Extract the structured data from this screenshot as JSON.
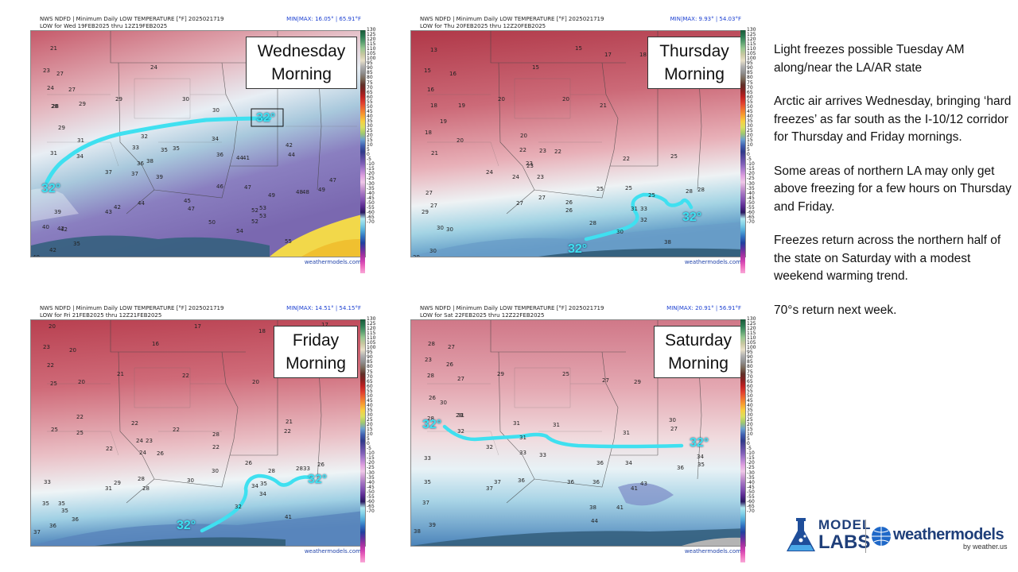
{
  "panels": [
    {
      "id": "wed",
      "header_line1": "NWS NDFD | Minimum Daily LOW TEMPERATURE [°F]  2025021719",
      "header_line2": "LOW for Wed 19FEB2025 thru 12Z19FEB2025",
      "minmax": "MIN|MAX: 16.05° | 65.91°F",
      "day_line1": "Wednesday",
      "day_line2": "Morning",
      "line_label": "32°",
      "credit": "weathermodels.com"
    },
    {
      "id": "thu",
      "header_line1": "NWS NDFD | Minimum Daily LOW TEMPERATURE [°F]  2025021719",
      "header_line2": "LOW for Thu 20FEB2025 thru 12Z20FEB2025",
      "minmax": "MIN|MAX: 9.93° | 54.03°F",
      "day_line1": "Thursday",
      "day_line2": "Morning",
      "line_label": "32°",
      "credit": "weathermodels.com"
    },
    {
      "id": "fri",
      "header_line1": "NWS NDFD | Minimum Daily LOW TEMPERATURE [°F]  2025021719",
      "header_line2": "LOW for Fri 21FEB2025 thru 12Z21FEB2025",
      "minmax": "MIN|MAX: 14.51° | 54.15°F",
      "day_line1": "Friday",
      "day_line2": "Morning",
      "line_label": "32°",
      "credit": "weathermodels.com"
    },
    {
      "id": "sat",
      "header_line1": "NWS NDFD | Minimum Daily LOW TEMPERATURE [°F]  2025021719",
      "header_line2": "LOW for Sat 22FEB2025 thru 12Z22FEB2025",
      "minmax": "MIN|MAX: 20.91° | 56.91°F",
      "day_line1": "Saturday",
      "day_line2": "Morning",
      "line_label": "32°",
      "credit": "weathermodels.com"
    }
  ],
  "colorbar_ticks": [
    "130",
    "125",
    "120",
    "115",
    "110",
    "105",
    "100",
    "95",
    "90",
    "85",
    "80",
    "75",
    "70",
    "65",
    "60",
    "55",
    "50",
    "45",
    "40",
    "35",
    "30",
    "25",
    "20",
    "15",
    "10",
    "5",
    "0",
    "-5",
    "-10",
    "-15",
    "-20",
    "-25",
    "-30",
    "-35",
    "-40",
    "-45",
    "-50",
    "-55",
    "-60",
    "-65",
    "-70"
  ],
  "station_values": {
    "wed": [
      "21",
      "33",
      "24",
      "23",
      "27",
      "28",
      "24",
      "27",
      "30",
      "29",
      "29",
      "28",
      "29",
      "30",
      "34",
      "31",
      "31",
      "33",
      "36",
      "35",
      "35",
      "34",
      "32",
      "38",
      "37",
      "37",
      "41",
      "42",
      "44",
      "36",
      "44",
      "46",
      "47",
      "39",
      "45",
      "47",
      "43",
      "44",
      "42",
      "50",
      "49",
      "52",
      "53",
      "48",
      "48",
      "47",
      "49",
      "40",
      "42",
      "39",
      "42",
      "54",
      "52",
      "53",
      "55",
      "40",
      "35",
      "42"
    ],
    "thu": [
      "13",
      "15",
      "15",
      "16",
      "17",
      "18",
      "15",
      "16",
      "19",
      "20",
      "20",
      "18",
      "19",
      "20",
      "21",
      "21",
      "18",
      "20",
      "22",
      "23",
      "22",
      "23",
      "25",
      "23",
      "24",
      "25",
      "24",
      "26",
      "25",
      "23",
      "22",
      "27",
      "28",
      "27",
      "26",
      "27",
      "25",
      "27",
      "28",
      "30",
      "31",
      "33",
      "32",
      "29",
      "30",
      "30",
      "29",
      "30",
      "28",
      "38"
    ],
    "fri": [
      "20",
      "17",
      "18",
      "23",
      "16",
      "17",
      "20",
      "21",
      "22",
      "22",
      "20",
      "20",
      "25",
      "22",
      "24",
      "22",
      "21",
      "22",
      "22",
      "23",
      "25",
      "24",
      "22",
      "26",
      "28",
      "25",
      "22",
      "26",
      "28",
      "29",
      "30",
      "28",
      "28",
      "34",
      "26",
      "28",
      "33",
      "35",
      "31",
      "30",
      "32",
      "34",
      "33",
      "35",
      "35",
      "35",
      "37",
      "36",
      "41",
      "36"
    ],
    "sat": [
      "28",
      "23",
      "27",
      "28",
      "26",
      "27",
      "25",
      "27",
      "26",
      "29",
      "29",
      "30",
      "28",
      "27",
      "29",
      "30",
      "32",
      "31",
      "31",
      "31",
      "31",
      "33",
      "32",
      "33",
      "34",
      "36",
      "34",
      "36",
      "35",
      "33",
      "35",
      "31",
      "37",
      "36",
      "36",
      "37",
      "36",
      "38",
      "41",
      "43",
      "41",
      "44",
      "37",
      "39",
      "38"
    ]
  },
  "notes": [
    "Light freezes possible Tuesday AM along/near the LA/AR state",
    "Arctic air arrives Wednesday, bringing ‘hard freezes’ as far south as the I-10/12 corridor for Thursday and Friday mornings.",
    "Some areas of northern LA may only get above freezing for a few hours on Thursday and Friday.",
    "Freezes return across the northern half of the state on Saturday with a modest weekend warming trend.",
    "70°s return next week."
  ],
  "logos": {
    "model_labs_line1": "MODEL",
    "model_labs_line2": "LABS",
    "weathermodels": "weathermodels",
    "by_line": "by weather.us"
  },
  "colors": {
    "line_32": "#3fe0f0",
    "header_minmax": "#1b3fd1",
    "warm": "#c64a5a",
    "cool": "#3a5aa0"
  }
}
